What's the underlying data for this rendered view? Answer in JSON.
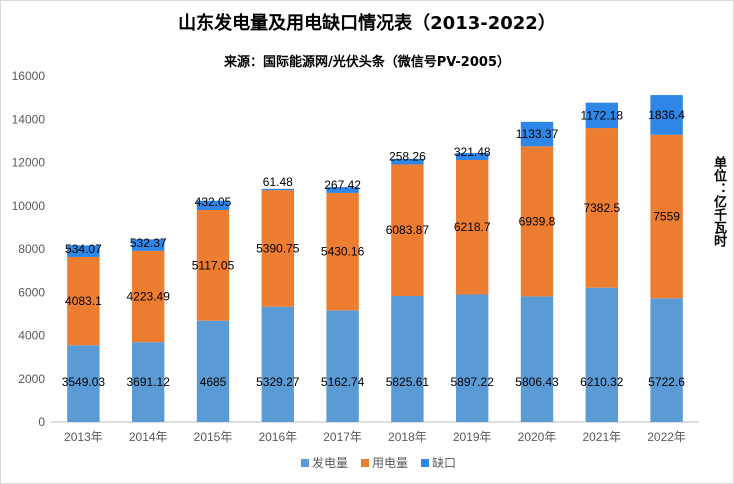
{
  "chart_data": {
    "type": "bar",
    "stacked": true,
    "title": "山东发电量及用电缺口情况表（2013-2022）",
    "subtitle": "来源：国际能源网/光伏头条（微信号PV-2005）",
    "unit_label": "单位：亿千瓦时",
    "categories": [
      "2013年",
      "2014年",
      "2015年",
      "2016年",
      "2017年",
      "2018年",
      "2019年",
      "2020年",
      "2021年",
      "2022年"
    ],
    "series": [
      {
        "name": "发电量",
        "color": "#5b9bd5",
        "values": [
          3549.03,
          3691.12,
          4685,
          5329.27,
          5162.74,
          5825.61,
          5897.22,
          5806.43,
          6210.32,
          5722.6
        ]
      },
      {
        "name": "用电量",
        "color": "#ed7d31",
        "values": [
          4083.1,
          4223.49,
          5117.05,
          5390.75,
          5430.16,
          6083.87,
          6218.7,
          6939.8,
          7382.5,
          7559
        ]
      },
      {
        "name": "缺口",
        "color": "#2e86e6",
        "values": [
          534.07,
          532.37,
          432.05,
          61.48,
          267.42,
          258.26,
          321.48,
          1133.37,
          1172.18,
          1836.4
        ]
      }
    ],
    "ylim": [
      0,
      16000
    ],
    "yticks": [
      0,
      2000,
      4000,
      6000,
      8000,
      10000,
      12000,
      14000,
      16000
    ],
    "grid": false,
    "legend": "bottom-center",
    "xlabel": "",
    "ylabel": ""
  }
}
